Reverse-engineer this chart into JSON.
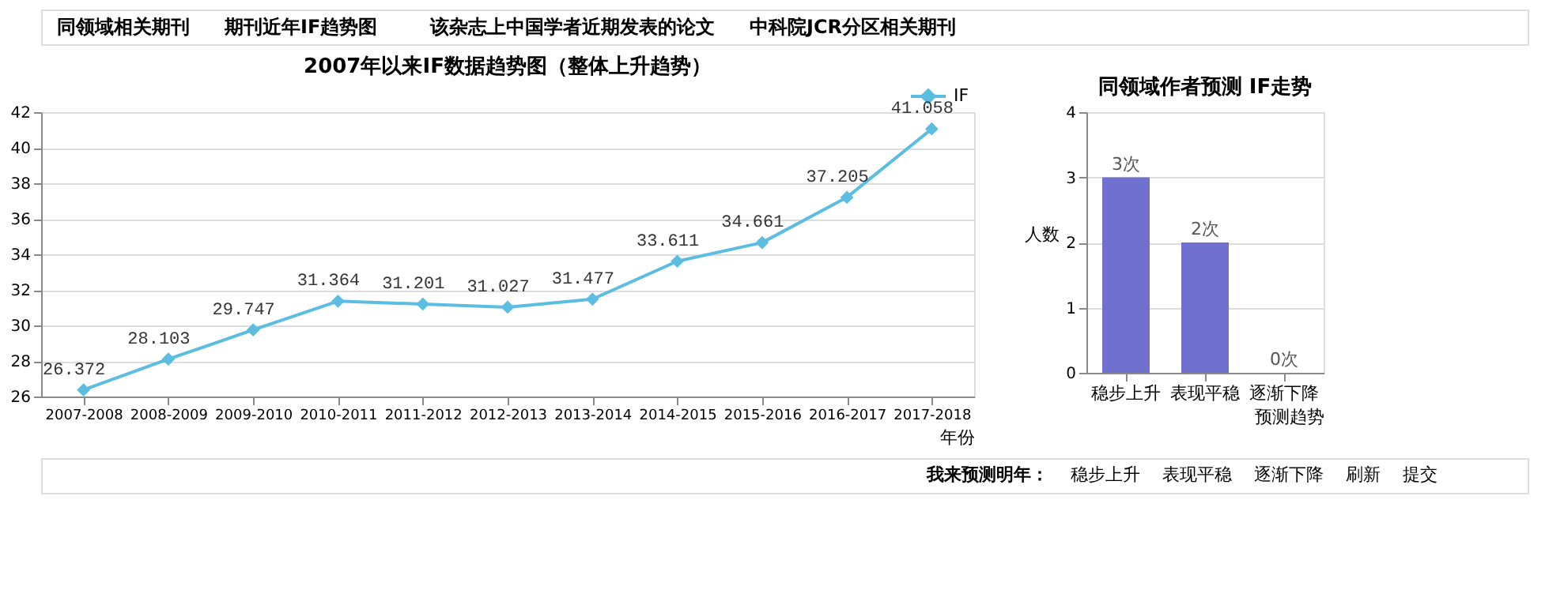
{
  "chart_data": [
    {
      "type": "other",
      "annotations": [
        "同领域相关期刊",
        "期刊近年IF趋势图",
        "该杂志上中国学者近期发表的论文",
        "中科院JCR分区相关期刊"
      ]
    },
    {
      "type": "line",
      "title": "2007年以来IF数据趋势图（整体上升趋势）",
      "xlabel": "年份",
      "categories": [
        "2007-2008",
        "2008-2009",
        "2009-2010",
        "2010-2011",
        "2011-2012",
        "2012-2013",
        "2013-2014",
        "2014-2015",
        "2015-2016",
        "2016-2017",
        "2017-2018"
      ],
      "series": [
        {
          "name": "IF",
          "color": "#5bbde0",
          "values": [
            26.372,
            28.103,
            29.747,
            31.364,
            31.201,
            31.027,
            31.477,
            33.611,
            34.661,
            37.205,
            41.058
          ]
        }
      ],
      "ylim": [
        26,
        42
      ],
      "yticks": [
        26,
        28,
        30,
        32,
        34,
        36,
        38,
        40,
        42
      ],
      "grid": "y",
      "legend": "top right",
      "marker": "diamond",
      "line_style": "solid",
      "data_labels": true
    },
    {
      "type": "bar",
      "title": "同领域作者预测 IF走势",
      "xlabel": "预测趋势",
      "ylabel": "人数",
      "categories": [
        "稳步上升",
        "表现平稳",
        "逐渐下降"
      ],
      "values": [
        3,
        2,
        0
      ],
      "value_labels": [
        "3次",
        "2次",
        "0次"
      ],
      "color": "#7070d0",
      "ylim": [
        0,
        4
      ],
      "yticks": [
        0,
        1,
        2,
        3,
        4
      ],
      "grid": "y"
    },
    {
      "type": "other",
      "title": "我来预测明年：",
      "annotations": [
        "稳步上升",
        "表现平稳",
        "逐渐下降",
        "刷新",
        "提交"
      ]
    }
  ]
}
